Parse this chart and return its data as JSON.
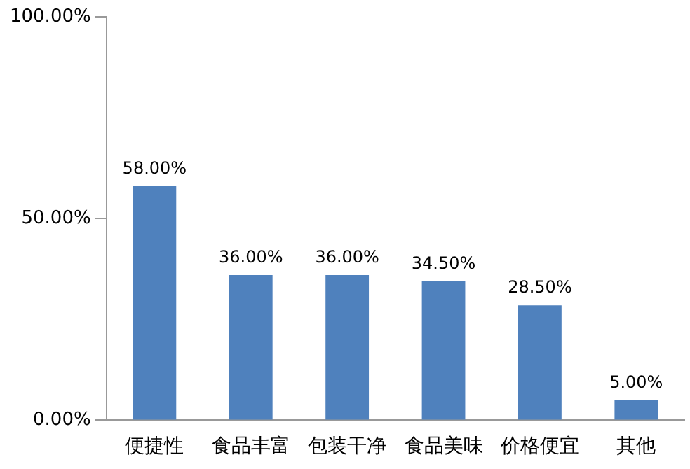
{
  "chart_data": {
    "type": "bar",
    "categories": [
      "便捷性",
      "食品丰富",
      "包装干净",
      "食品美味",
      "价格便宜",
      "其他"
    ],
    "values": [
      58,
      36,
      36,
      34.5,
      28.5,
      5
    ],
    "color": "#4f81bd",
    "value_labels": [
      "58.00%",
      "36.00%",
      "36.00%",
      "34.50%",
      "28.50%",
      "5.00%"
    ],
    "ylim": [
      0,
      100
    ],
    "yticks": [
      {
        "value": 0,
        "label": "0.00%"
      },
      {
        "value": 50,
        "label": "50.00%"
      },
      {
        "value": 100,
        "label": "100.00%"
      }
    ],
    "grid": false,
    "legend": false
  }
}
